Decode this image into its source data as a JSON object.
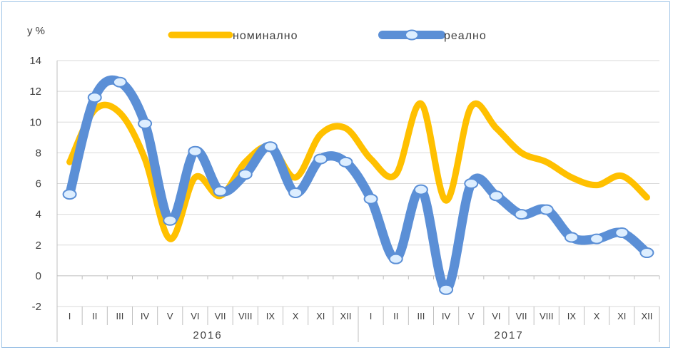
{
  "chart_data": {
    "type": "line",
    "ylabel": "у %",
    "ylim": [
      -2,
      14
    ],
    "yticks": [
      -2,
      0,
      2,
      4,
      6,
      8,
      10,
      12,
      14
    ],
    "categories": [
      "I",
      "II",
      "III",
      "IV",
      "V",
      "VI",
      "VII",
      "VIII",
      "IX",
      "X",
      "XI",
      "XII",
      "I",
      "II",
      "III",
      "IV",
      "V",
      "VI",
      "VII",
      "VIII",
      "IX",
      "X",
      "XI",
      "XII"
    ],
    "year_groups": [
      {
        "label": "2016",
        "count": 12
      },
      {
        "label": "2017",
        "count": 12
      }
    ],
    "grid": true,
    "legend_position": "top",
    "series": [
      {
        "name": "номинално",
        "color": "#ffc000",
        "marker": false,
        "values": [
          7.4,
          10.8,
          10.6,
          7.6,
          2.4,
          6.4,
          5.2,
          7.4,
          8.4,
          6.4,
          9.2,
          9.6,
          7.6,
          6.6,
          11.2,
          4.9,
          11.0,
          9.6,
          8.0,
          7.4,
          6.4,
          5.9,
          6.5,
          5.1
        ]
      },
      {
        "name": "реално",
        "color": "#5b8fd6",
        "marker": true,
        "values": [
          5.3,
          11.6,
          12.6,
          9.9,
          3.6,
          8.1,
          5.5,
          6.6,
          8.4,
          5.4,
          7.6,
          7.4,
          5.0,
          1.1,
          5.6,
          -0.9,
          6.0,
          5.2,
          4.0,
          4.3,
          2.5,
          2.4,
          2.8,
          1.5
        ]
      }
    ]
  }
}
